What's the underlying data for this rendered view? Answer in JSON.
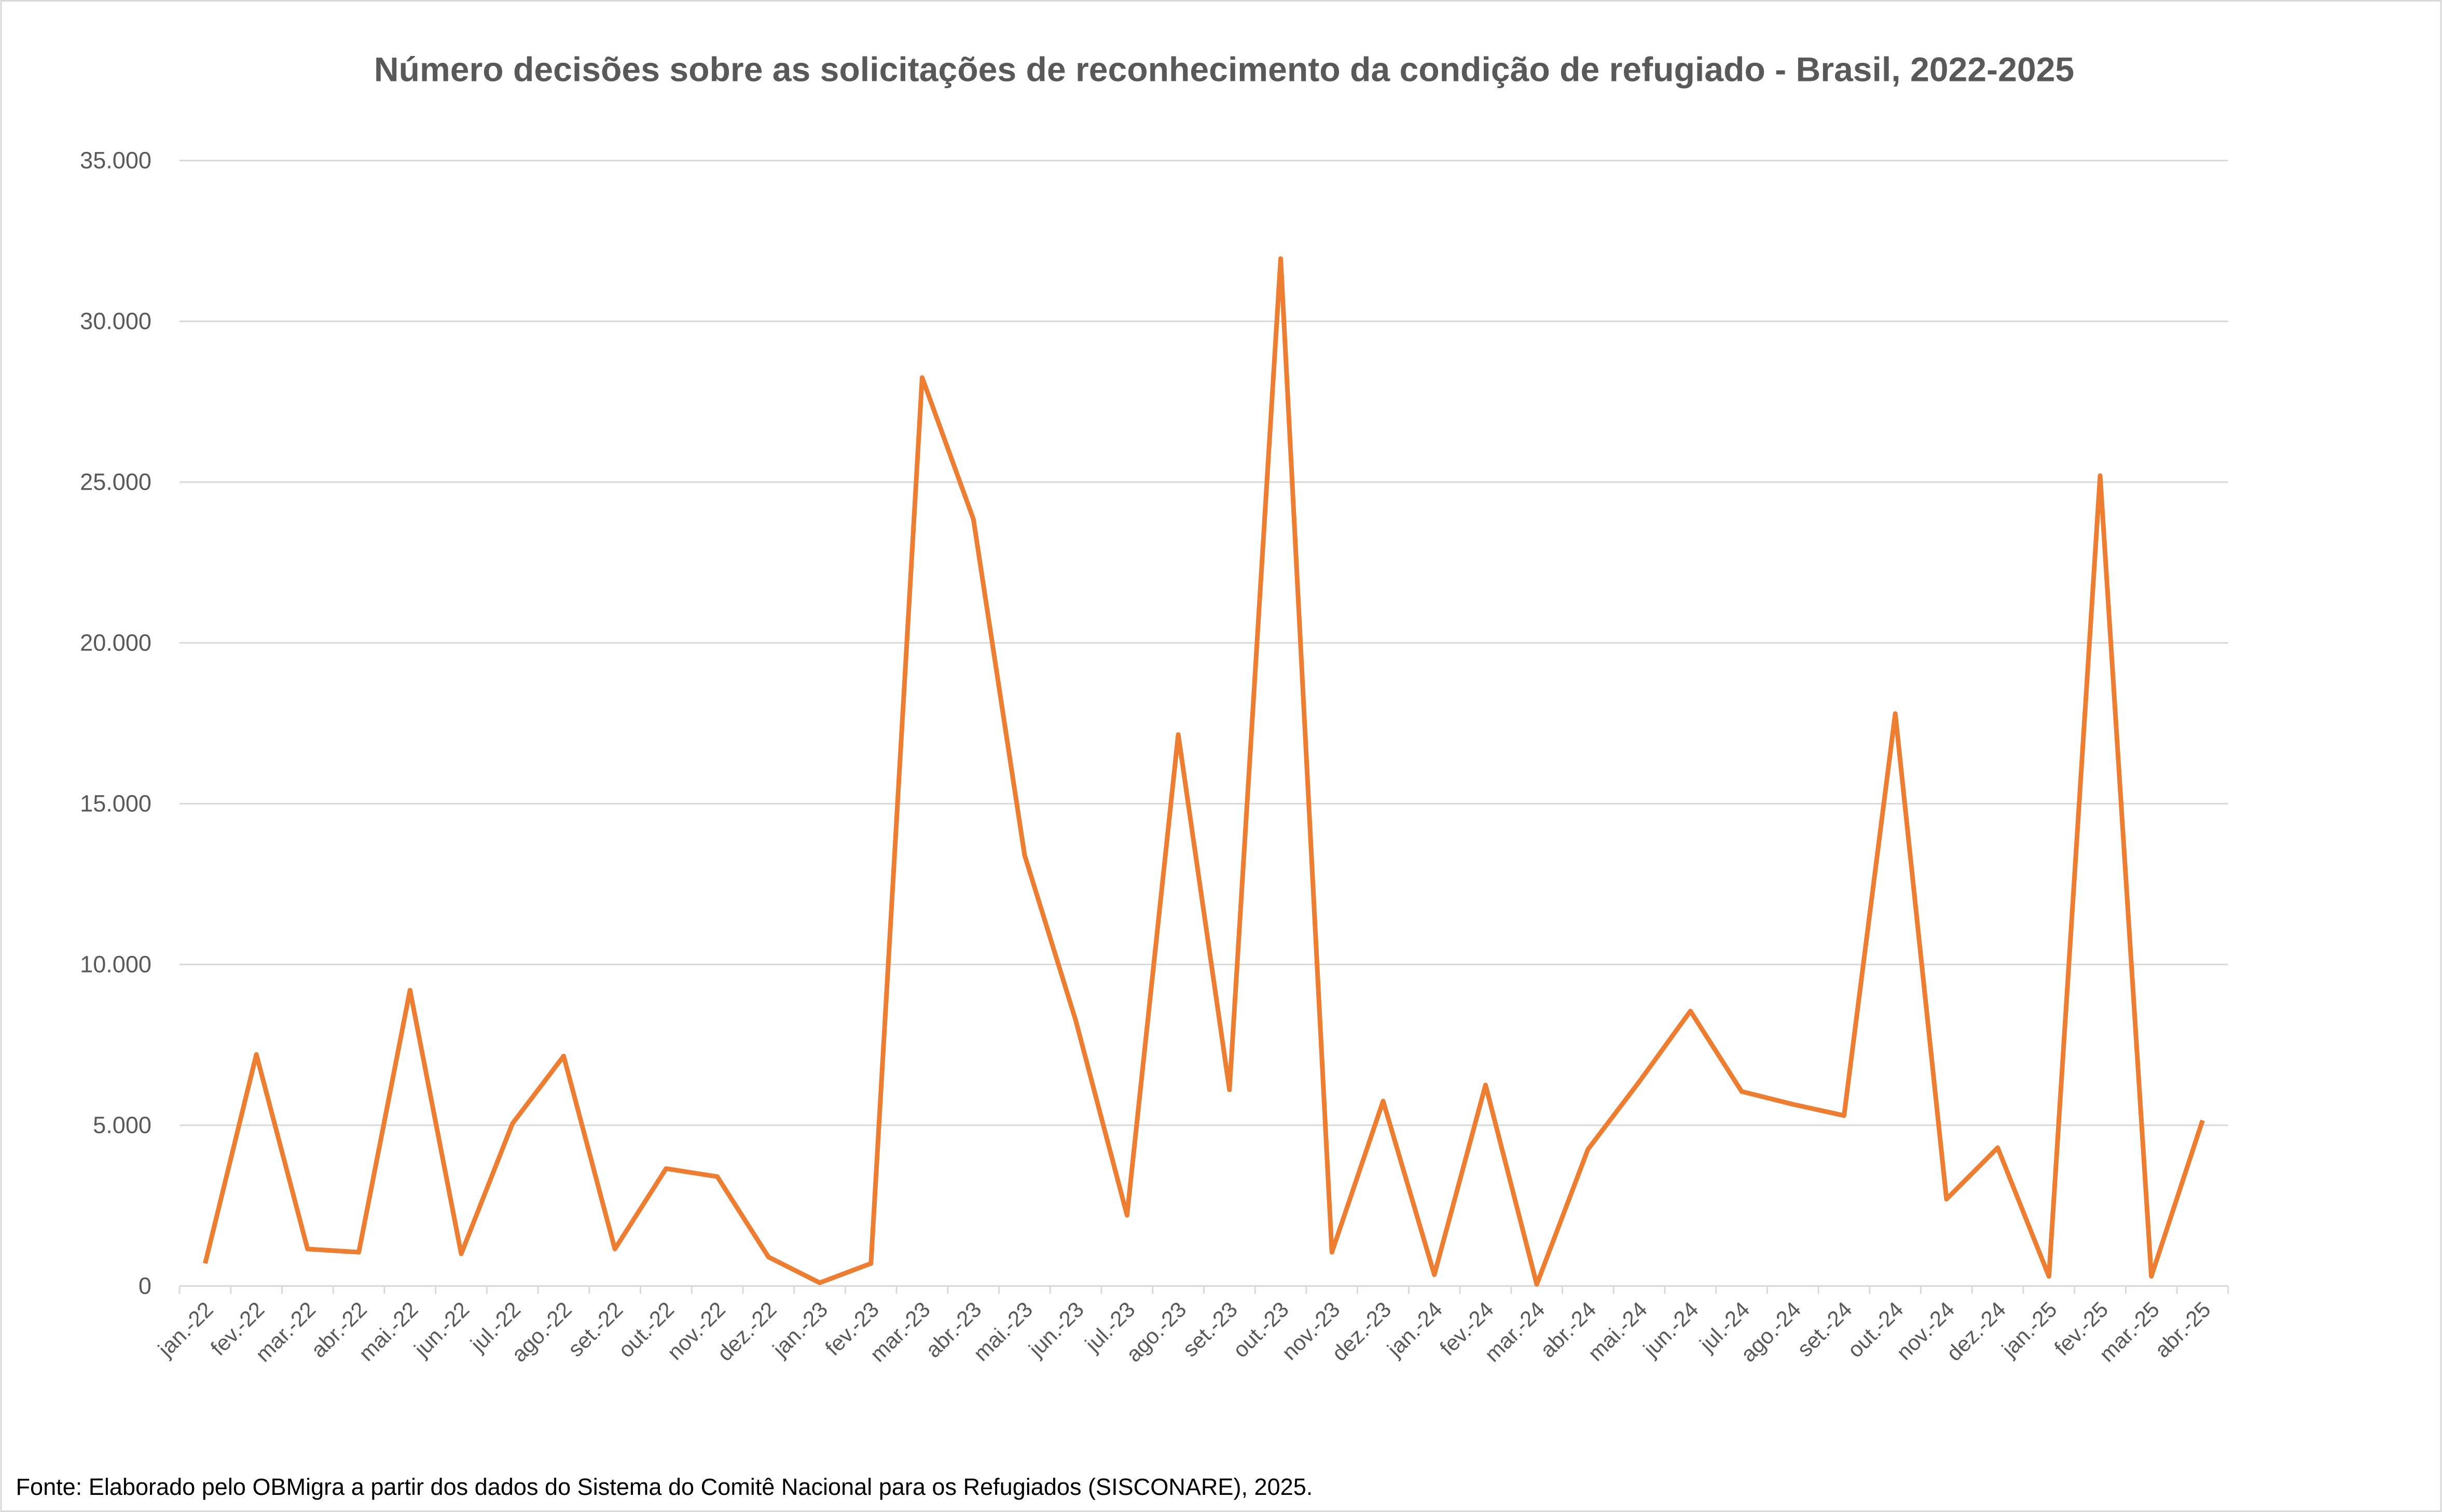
{
  "chart_data": {
    "type": "line",
    "title": "Número decisões sobre as solicitações de reconhecimento da condição de refugiado - Brasil, 2022-2025",
    "source": "Fonte: Elaborado pelo OBMigra a partir dos dados  do Sistema do Comitê Nacional para os Refugiados (SISCONARE), 2025.",
    "categories": [
      "jan.-22",
      "fev.-22",
      "mar.-22",
      "abr.-22",
      "mai.-22",
      "jun.-22",
      "jul.-22",
      "ago.-22",
      "set.-22",
      "out.-22",
      "nov.-22",
      "dez.-22",
      "jan.-23",
      "fev.-23",
      "mar.-23",
      "abr.-23",
      "mai.-23",
      "jun.-23",
      "jul.-23",
      "ago.-23",
      "set.-23",
      "out.-23",
      "nov.-23",
      "dez.-23",
      "jan.-24",
      "fev.-24",
      "mar.-24",
      "abr.-24",
      "mai.-24",
      "jun.-24",
      "jul.-24",
      "ago.-24",
      "set.-24",
      "out.-24",
      "nov.-24",
      "dez.-24",
      "jan.-25",
      "fev.-25",
      "mar.-25",
      "abr.-25"
    ],
    "series": [
      {
        "color": "#ed7d31",
        "values": [
          700,
          7200,
          1150,
          1050,
          9200,
          1000,
          5050,
          7150,
          1150,
          3650,
          3400,
          900,
          100,
          700,
          28250,
          23850,
          13400,
          8250,
          2200,
          17150,
          6100,
          31950,
          1050,
          5750,
          350,
          6250,
          50,
          4250,
          6350,
          8550,
          6050,
          5650,
          5300,
          17800,
          2700,
          4300,
          300,
          25200,
          300,
          5150
        ]
      }
    ],
    "ylim": [
      0,
      35000
    ],
    "yticks": [
      0,
      {
        "value": 5000,
        "label": "5.000"
      },
      {
        "value": 10000,
        "label": "10.000"
      },
      {
        "value": 15000,
        "label": "15.000"
      },
      {
        "value": 20000,
        "label": "20.000"
      },
      {
        "value": 25000,
        "label": "25.000"
      },
      {
        "value": 30000,
        "label": "30.000"
      },
      {
        "value": 35000,
        "label": "35.000"
      }
    ],
    "grid": true
  }
}
